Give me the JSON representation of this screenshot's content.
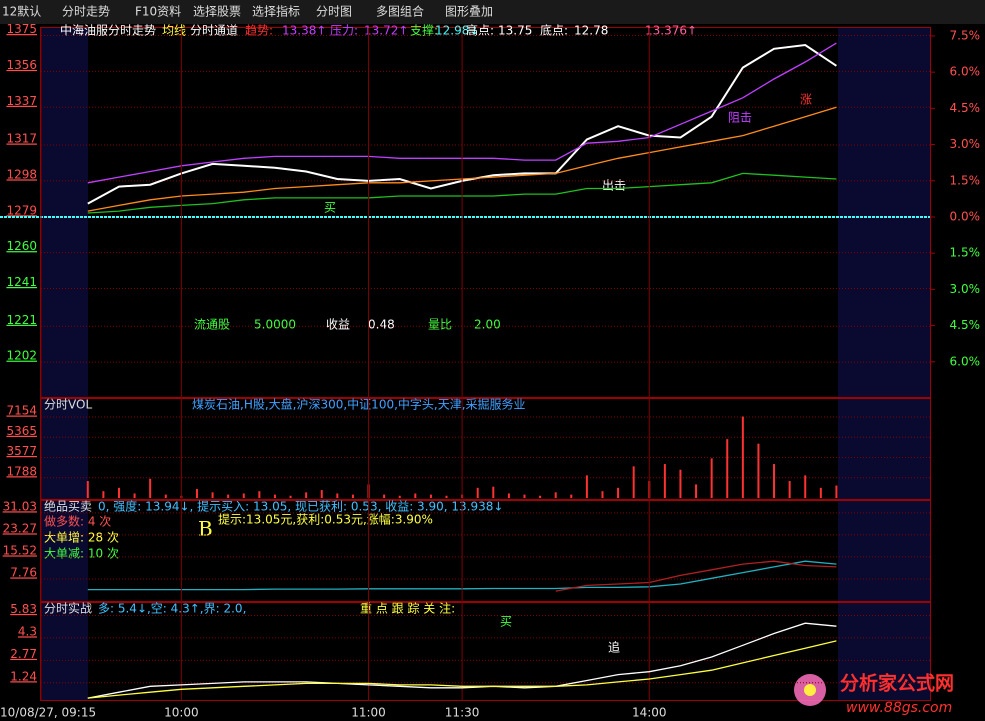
{
  "toolbar": [
    "12默认",
    "分时走势",
    "F10资料",
    "选择股票",
    "选择指标",
    "分时图",
    "多图组合",
    "图形叠加"
  ],
  "watermark": {
    "title": "分析家公式网",
    "url": "www.88gs.com"
  },
  "chart_data": [
    {
      "type": "line",
      "title": "中海油服分时走势",
      "header": [
        "均线",
        "分时通道",
        "趋势:",
        "13.38↑",
        "压力:",
        "13.72↑",
        "支撑:",
        "12.98↓",
        "高点:",
        "13.75",
        "底点:",
        "12.78",
        "13.376↑"
      ],
      "annotations": [
        "流通股",
        "5.0000",
        "收益",
        "0.48",
        "量比",
        "2.00",
        "买",
        "出击",
        "阻击",
        "涨"
      ],
      "x": [
        0,
        10,
        20,
        30,
        40,
        50,
        60,
        70,
        80,
        90,
        100,
        110,
        120,
        130,
        140,
        150,
        160,
        170,
        180,
        190,
        200,
        210,
        220,
        230,
        240
      ],
      "xlim": [
        -15,
        270
      ],
      "ylim": [
        1183,
        1379
      ],
      "y2lim": [
        -7.5,
        7.83
      ],
      "yticks": [
        1375,
        1356,
        1337,
        1317,
        1298,
        1279,
        1260,
        1241,
        1221,
        1202
      ],
      "y2ticks": [
        {
          "value": 7.5,
          "label": "7.5%"
        },
        {
          "value": 6.0,
          "label": "6.0%"
        },
        {
          "value": 4.5,
          "label": "4.5%"
        },
        {
          "value": 3.0,
          "label": "3.0%"
        },
        {
          "value": 1.5,
          "label": "1.5%"
        },
        {
          "value": 0.0,
          "label": "0.0%"
        },
        {
          "value": -1.5,
          "label": "1.5%"
        },
        {
          "value": -3.0,
          "label": "3.0%"
        },
        {
          "value": -4.5,
          "label": "4.5%"
        },
        {
          "value": -6.0,
          "label": "6.0%"
        }
      ],
      "series": [
        {
          "color": "#ffffff",
          "values": [
            1286,
            1295,
            1296,
            1302,
            1307,
            1306,
            1305,
            1303,
            1299,
            1298,
            1299,
            1294,
            1298,
            1301,
            1302,
            1302,
            1320,
            1327,
            1322,
            1321,
            1332,
            1358,
            1368,
            1370,
            1359
          ]
        },
        {
          "color": "#ff8c1a",
          "values": [
            1282,
            1285,
            1288,
            1290,
            1291,
            1292,
            1294,
            1295,
            1296,
            1297,
            1297,
            1298,
            1299,
            1300,
            1301,
            1302,
            1306,
            1310,
            1313,
            1316,
            1319,
            1322,
            1327,
            1332,
            1337
          ]
        },
        {
          "color": "#c040ff",
          "values": [
            1297,
            1300,
            1303,
            1306,
            1308,
            1310,
            1311,
            1311,
            1311,
            1311,
            1310,
            1310,
            1310,
            1310,
            1309,
            1309,
            1318,
            1319,
            1321,
            1328,
            1335,
            1342,
            1352,
            1361,
            1371
          ]
        },
        {
          "color": "#20c020",
          "values": [
            1281,
            1282,
            1284,
            1285,
            1286,
            1288,
            1289,
            1289,
            1289,
            1289,
            1290,
            1290,
            1290,
            1290,
            1291,
            1291,
            1294,
            1294,
            1295,
            1296,
            1297,
            1302,
            1301,
            1300,
            1299
          ]
        }
      ]
    },
    {
      "type": "bar",
      "title": "分时VOL",
      "sectors": "煤炭石油,H股,大盘,沪深300,中证100,中字头,天津,采掘服务业",
      "x": [
        0,
        5,
        10,
        15,
        20,
        25,
        30,
        35,
        40,
        45,
        50,
        55,
        60,
        65,
        70,
        75,
        80,
        85,
        90,
        95,
        100,
        105,
        110,
        115,
        120,
        125,
        130,
        135,
        140,
        145,
        150,
        155,
        160,
        165,
        170,
        175,
        180,
        185,
        190,
        195,
        200,
        205,
        210,
        215,
        220,
        225,
        230,
        235,
        240
      ],
      "xlim": [
        -15,
        270
      ],
      "ylim": [
        0,
        8660
      ],
      "yticks": [
        7154,
        5365,
        3577,
        1788
      ],
      "series": [
        {
          "color": "#ff3232",
          "values": [
            1500,
            600,
            900,
            400,
            1700,
            300,
            200,
            800,
            500,
            300,
            400,
            600,
            300,
            200,
            500,
            700,
            400,
            300,
            1200,
            300,
            200,
            400,
            300,
            200,
            300,
            900,
            1000,
            400,
            300,
            200,
            500,
            300,
            2000,
            600,
            900,
            2800,
            1500,
            3000,
            2500,
            1200,
            3500,
            5200,
            7200,
            4800,
            3000,
            1500,
            2000,
            900,
            1100
          ]
        }
      ]
    },
    {
      "type": "line",
      "title": "绝品买卖",
      "header": "0, 强度: 13.94↓, 提示买入: 13.05, 现已获利: 0.53, 收益: 3.90, 13.938↓",
      "notes": [
        "做多数: 4 次",
        "大单增: 28 次",
        "大单减: 10 次"
      ],
      "marker": "B",
      "hint": "提示:13.05元,获利:0.53元,涨幅:3.90%",
      "x": [
        0,
        10,
        20,
        30,
        40,
        50,
        60,
        70,
        80,
        90,
        100,
        110,
        120,
        130,
        140,
        150,
        160,
        170,
        180,
        190,
        200,
        210,
        220,
        230,
        240
      ],
      "xlim": [
        -15,
        270
      ],
      "ylim": [
        0,
        35.2
      ],
      "yticks": [
        31.03,
        23.27,
        15.52,
        7.76
      ],
      "series": [
        {
          "color": "#20b0c0",
          "values": [
            4,
            4,
            4,
            4,
            4,
            4,
            4.2,
            4.2,
            4.2,
            4.3,
            4.3,
            4.3,
            4.3,
            4.4,
            4.4,
            4.4,
            4.8,
            4.8,
            5,
            6,
            8,
            10,
            12,
            14,
            13
          ]
        },
        {
          "color": "#b02020",
          "values": [
            null,
            null,
            null,
            null,
            null,
            null,
            null,
            null,
            null,
            null,
            null,
            null,
            null,
            null,
            null,
            3.5,
            5.5,
            6,
            6.5,
            9,
            11,
            13,
            14,
            12.5,
            12
          ]
        }
      ]
    },
    {
      "type": "line",
      "title": "分时实战",
      "header": "多: 5.4↓,空: 4.3↑,界: 2.0,",
      "focus": "重 点 跟 踪 关 注:",
      "annotations": [
        "买",
        "追"
      ],
      "x": [
        0,
        10,
        20,
        30,
        40,
        50,
        60,
        70,
        80,
        90,
        100,
        110,
        120,
        130,
        140,
        150,
        160,
        170,
        180,
        190,
        200,
        210,
        220,
        230,
        240
      ],
      "xlim": [
        -15,
        270
      ],
      "ylim": [
        0,
        6.68
      ],
      "yticks": [
        5.83,
        4.3,
        2.77,
        1.24
      ],
      "xticks": [
        {
          "value": -15,
          "label": "10/08/27, 09:15"
        },
        {
          "value": 30,
          "label": "10:00"
        },
        {
          "value": 90,
          "label": "11:00"
        },
        {
          "value": 120,
          "label": "11:30"
        },
        {
          "value": 180,
          "label": "14:00"
        }
      ],
      "series": [
        {
          "color": "#ffffff",
          "values": [
            0.2,
            0.6,
            1.0,
            1.1,
            1.2,
            1.3,
            1.3,
            1.3,
            1.2,
            1.1,
            1.0,
            0.9,
            0.9,
            1.0,
            0.9,
            1.0,
            1.4,
            1.8,
            2.0,
            2.4,
            3.0,
            3.8,
            4.6,
            5.3,
            5.1
          ]
        },
        {
          "color": "#ffff40",
          "values": [
            0.2,
            0.4,
            0.6,
            0.8,
            0.9,
            1.0,
            1.1,
            1.2,
            1.2,
            1.2,
            1.1,
            1.1,
            1.0,
            1.0,
            1.0,
            1.0,
            1.1,
            1.3,
            1.5,
            1.8,
            2.1,
            2.6,
            3.1,
            3.6,
            4.1
          ]
        }
      ]
    }
  ]
}
